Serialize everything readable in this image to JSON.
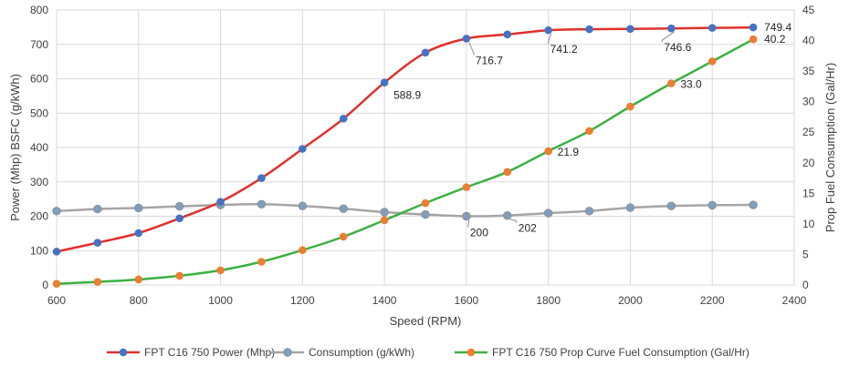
{
  "chart_data": {
    "type": "line",
    "xlabel": "Speed (RPM)",
    "ylabel": "Power (Mhp) BSFC (g/kWh)",
    "y2label": "Prop Fuel Consumption (Gal/Hr)",
    "xlim": [
      600,
      2400
    ],
    "ylim": [
      0,
      800
    ],
    "y2lim": [
      0,
      45
    ],
    "x_ticks": [
      "600",
      "800",
      "1000",
      "1200",
      "1400",
      "1600",
      "1800",
      "2000",
      "2200",
      "2400"
    ],
    "y_ticks": [
      "0",
      "100",
      "200",
      "300",
      "400",
      "500",
      "600",
      "700",
      "800"
    ],
    "y2_ticks": [
      "0",
      "5",
      "10",
      "15",
      "20",
      "25",
      "30",
      "35",
      "40",
      "45"
    ],
    "grid": true,
    "legend": "bottom",
    "series": [
      {
        "name": "FPT C16 750 Power (Mhp)",
        "axis": "left",
        "color": "#e0302a",
        "marker_color": "#4472c4",
        "x": [
          600,
          700,
          800,
          900,
          1000,
          1100,
          1200,
          1300,
          1400,
          1500,
          1600,
          1700,
          1800,
          1900,
          2000,
          2100,
          2200,
          2300
        ],
        "y": [
          97,
          123,
          151,
          194,
          242,
          311,
          396,
          484,
          588.9,
          676,
          716.7,
          729,
          741.2,
          744,
          745,
          746.6,
          748,
          749.4
        ]
      },
      {
        "name": "Consumption (g/kWh)",
        "axis": "left",
        "color": "#a5a5a5",
        "marker_color": "#7f9fbf",
        "x": [
          600,
          700,
          800,
          900,
          1000,
          1100,
          1200,
          1300,
          1400,
          1500,
          1600,
          1700,
          1800,
          1900,
          2000,
          2100,
          2200,
          2300
        ],
        "y": [
          215,
          221,
          224,
          229,
          233,
          235,
          230,
          222,
          212,
          205,
          200,
          202,
          209,
          215,
          225,
          230,
          232,
          233
        ]
      },
      {
        "name": "FPT C16 750 Prop Curve Fuel Consumption (Gal/Hr)",
        "axis": "right",
        "color": "#3cb043",
        "marker_color": "#ed7d31",
        "x": [
          600,
          700,
          800,
          900,
          1000,
          1100,
          1200,
          1300,
          1400,
          1500,
          1600,
          1700,
          1800,
          1900,
          2000,
          2100,
          2200,
          2300
        ],
        "y": [
          0.2,
          0.5,
          0.9,
          1.5,
          2.4,
          3.8,
          5.7,
          7.9,
          10.6,
          13.4,
          16.0,
          18.5,
          21.9,
          25.2,
          29.2,
          33.0,
          36.6,
          40.2
        ]
      }
    ],
    "annotations": [
      {
        "series": 0,
        "x": 1400,
        "text": "588.9"
      },
      {
        "series": 0,
        "x": 1600,
        "text": "716.7"
      },
      {
        "series": 0,
        "x": 1800,
        "text": "741.2"
      },
      {
        "series": 0,
        "x": 2100,
        "text": "746.6"
      },
      {
        "series": 0,
        "x": 2300,
        "text": "749.4"
      },
      {
        "series": 1,
        "x": 1600,
        "text": "200"
      },
      {
        "series": 1,
        "x": 1700,
        "text": "202"
      },
      {
        "series": 2,
        "x": 1800,
        "text": "21.9"
      },
      {
        "series": 2,
        "x": 2100,
        "text": "33.0"
      },
      {
        "series": 2,
        "x": 2300,
        "text": "40.2"
      }
    ]
  }
}
